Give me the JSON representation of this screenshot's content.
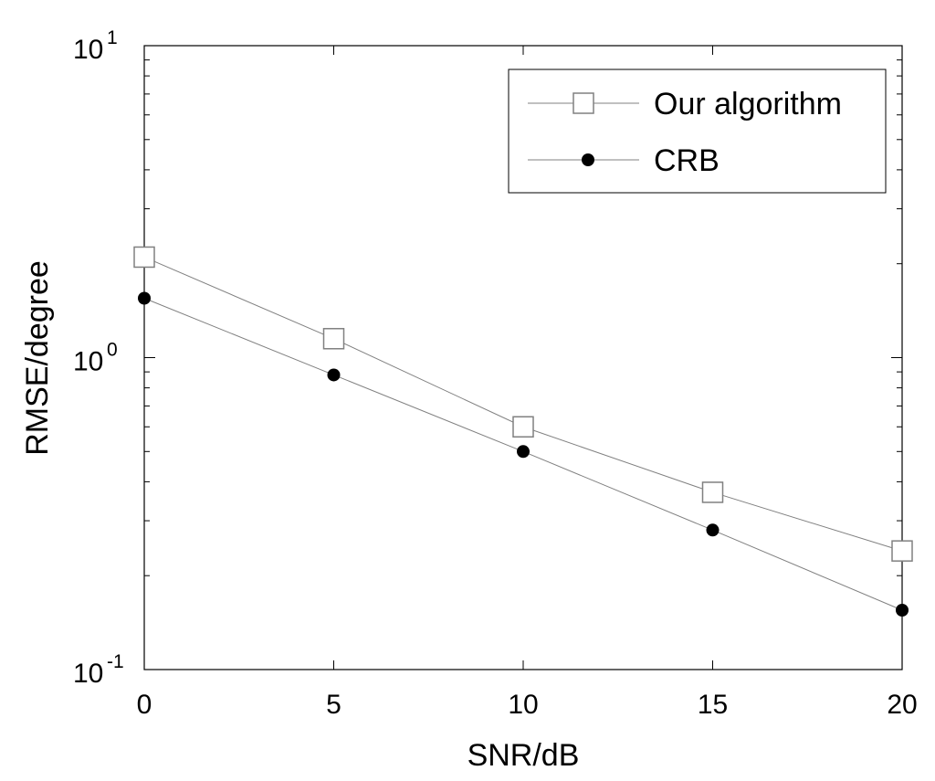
{
  "chart_data": {
    "type": "line",
    "title": "",
    "xlabel": "SNR/dB",
    "ylabel": "RMSE/degree",
    "xlim": [
      0,
      20
    ],
    "ylim": [
      0.1,
      10
    ],
    "yscale": "log",
    "grid": false,
    "legend_position": "top-right",
    "x": [
      0,
      5,
      10,
      15,
      20
    ],
    "x_ticks": [
      0,
      5,
      10,
      15,
      20
    ],
    "y_ticks": [
      {
        "base": "10",
        "exp": "-1",
        "value": 0.1
      },
      {
        "base": "10",
        "exp": "0",
        "value": 1
      },
      {
        "base": "10",
        "exp": "1",
        "value": 10
      }
    ],
    "series": [
      {
        "name": "Our algorithm",
        "marker": "open-square",
        "color": "#808080",
        "values": [
          2.1,
          1.15,
          0.6,
          0.37,
          0.24
        ]
      },
      {
        "name": "CRB",
        "marker": "filled-circle",
        "color": "#000000",
        "values": [
          1.55,
          0.88,
          0.5,
          0.28,
          0.155
        ]
      }
    ]
  }
}
